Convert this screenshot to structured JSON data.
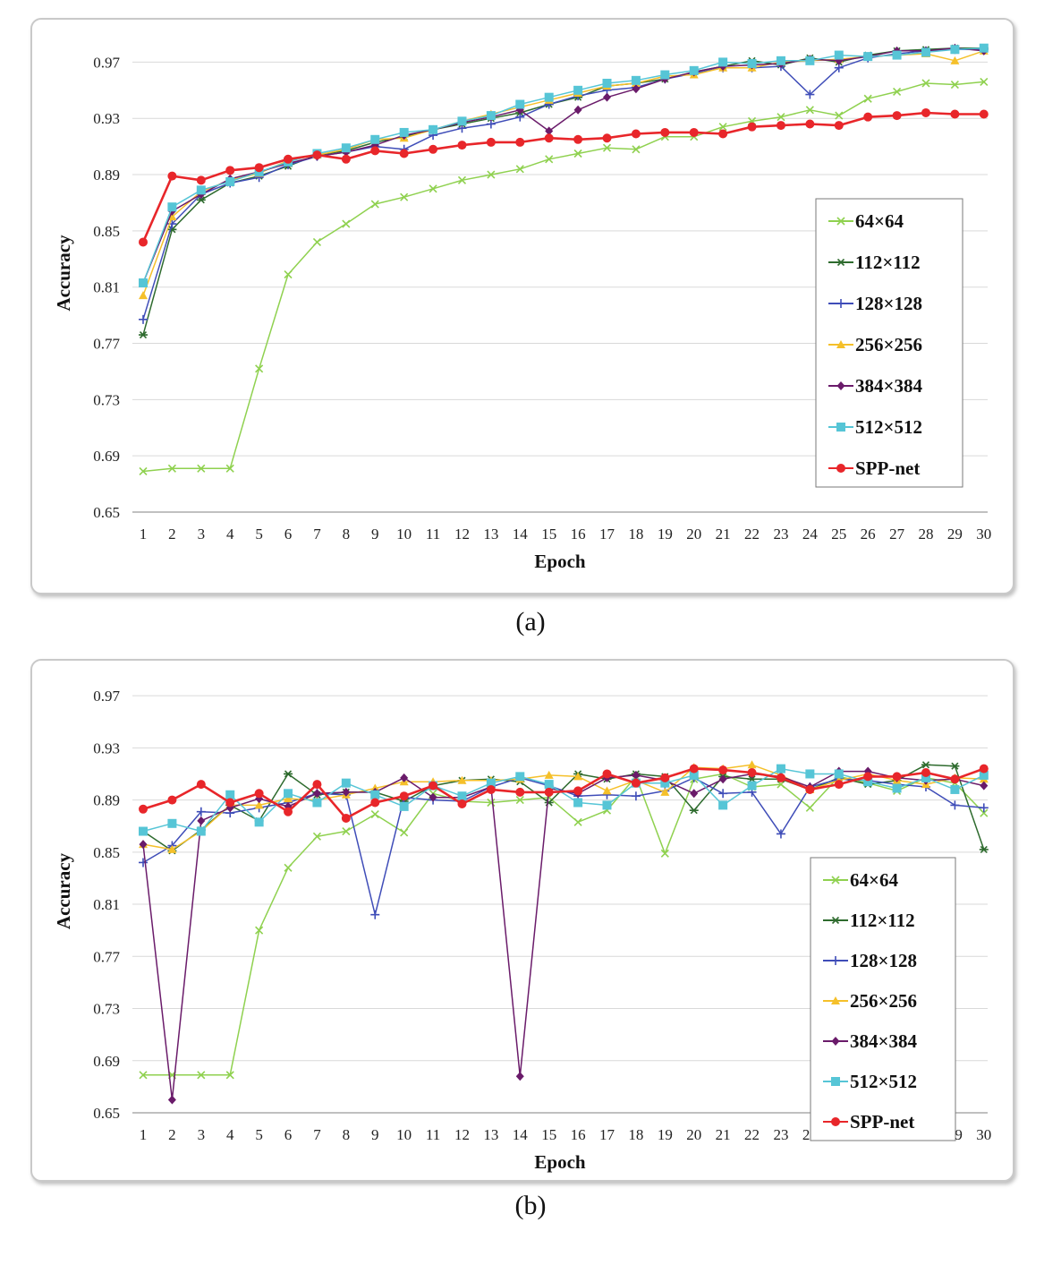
{
  "chart_data": [
    {
      "type": "line",
      "panel_label": "(a)",
      "xlabel": "Epoch",
      "ylabel": "Accuracy",
      "ylim": [
        0.65,
        0.99
      ],
      "yticks": [
        0.65,
        0.69,
        0.73,
        0.77,
        0.81,
        0.85,
        0.89,
        0.93,
        0.97
      ],
      "x": [
        1,
        2,
        3,
        4,
        5,
        6,
        7,
        8,
        9,
        10,
        11,
        12,
        13,
        14,
        15,
        16,
        17,
        18,
        19,
        20,
        21,
        22,
        23,
        24,
        25,
        26,
        27,
        28,
        29,
        30
      ],
      "grid": "horizontal",
      "legend": "right",
      "series": [
        {
          "name": "64×64",
          "color": "#8fd14f",
          "marker": "x",
          "values": [
            0.679,
            0.681,
            0.681,
            0.681,
            0.752,
            0.819,
            0.842,
            0.855,
            0.869,
            0.874,
            0.88,
            0.886,
            0.89,
            0.894,
            0.901,
            0.905,
            0.909,
            0.908,
            0.917,
            0.917,
            0.924,
            0.928,
            0.931,
            0.936,
            0.932,
            0.944,
            0.949,
            0.955,
            0.954,
            0.956
          ]
        },
        {
          "name": "112×112",
          "color": "#2e6b2e",
          "marker": "star",
          "values": [
            0.776,
            0.851,
            0.872,
            0.884,
            0.889,
            0.896,
            0.904,
            0.907,
            0.913,
            0.917,
            0.922,
            0.926,
            0.93,
            0.934,
            0.94,
            0.945,
            0.953,
            0.955,
            0.958,
            0.963,
            0.967,
            0.971,
            0.968,
            0.973,
            0.97,
            0.975,
            0.978,
            0.979,
            0.98,
            0.98
          ]
        },
        {
          "name": "128×128",
          "color": "#3f4db8",
          "marker": "plus",
          "values": [
            0.787,
            0.855,
            0.876,
            0.884,
            0.888,
            0.897,
            0.903,
            0.906,
            0.91,
            0.908,
            0.918,
            0.923,
            0.926,
            0.931,
            0.94,
            0.946,
            0.95,
            0.952,
            0.958,
            0.962,
            0.966,
            0.966,
            0.967,
            0.947,
            0.966,
            0.973,
            0.976,
            0.978,
            0.979,
            0.979
          ]
        },
        {
          "name": "256×256",
          "color": "#f5c02a",
          "marker": "triangle",
          "values": [
            0.804,
            0.86,
            0.878,
            0.886,
            0.891,
            0.9,
            0.904,
            0.908,
            0.915,
            0.916,
            0.922,
            0.928,
            0.933,
            0.938,
            0.943,
            0.948,
            0.953,
            0.955,
            0.96,
            0.961,
            0.966,
            0.966,
            0.97,
            0.971,
            0.972,
            0.974,
            0.975,
            0.976,
            0.971,
            0.978
          ]
        },
        {
          "name": "384×384",
          "color": "#6a1b6a",
          "marker": "diamond",
          "values": [
            0.813,
            0.864,
            0.876,
            0.887,
            0.892,
            0.898,
            0.903,
            0.906,
            0.911,
            0.918,
            0.922,
            0.927,
            0.931,
            0.936,
            0.921,
            0.936,
            0.945,
            0.951,
            0.958,
            0.963,
            0.967,
            0.968,
            0.969,
            0.972,
            0.971,
            0.974,
            0.978,
            0.978,
            0.98,
            0.978
          ]
        },
        {
          "name": "512×512",
          "color": "#56c5d6",
          "marker": "square",
          "values": [
            0.813,
            0.867,
            0.879,
            0.885,
            0.892,
            0.899,
            0.905,
            0.909,
            0.915,
            0.92,
            0.922,
            0.928,
            0.932,
            0.94,
            0.945,
            0.95,
            0.955,
            0.957,
            0.961,
            0.964,
            0.97,
            0.969,
            0.971,
            0.971,
            0.975,
            0.974,
            0.975,
            0.977,
            0.979,
            0.98
          ]
        },
        {
          "name": "SPP-net",
          "color": "#e8262a",
          "marker": "circle",
          "values": [
            0.842,
            0.889,
            0.886,
            0.893,
            0.895,
            0.901,
            0.904,
            0.901,
            0.907,
            0.905,
            0.908,
            0.911,
            0.913,
            0.913,
            0.916,
            0.915,
            0.916,
            0.919,
            0.92,
            0.92,
            0.919,
            0.924,
            0.925,
            0.926,
            0.925,
            0.931,
            0.932,
            0.934,
            0.933,
            0.933
          ]
        }
      ]
    },
    {
      "type": "line",
      "panel_label": "(b)",
      "xlabel": "Epoch",
      "ylabel": "Accuracy",
      "ylim": [
        0.65,
        0.99
      ],
      "yticks": [
        0.65,
        0.69,
        0.73,
        0.77,
        0.81,
        0.85,
        0.89,
        0.93,
        0.97
      ],
      "x": [
        1,
        2,
        3,
        4,
        5,
        6,
        7,
        8,
        9,
        10,
        11,
        12,
        13,
        14,
        15,
        16,
        17,
        18,
        19,
        20,
        21,
        22,
        23,
        24,
        25,
        26,
        27,
        28,
        29,
        30
      ],
      "grid": "horizontal",
      "legend": "right",
      "series": [
        {
          "name": "64×64",
          "color": "#8fd14f",
          "marker": "x",
          "values": [
            0.679,
            0.679,
            0.679,
            0.679,
            0.79,
            0.838,
            0.862,
            0.866,
            0.879,
            0.865,
            0.895,
            0.889,
            0.888,
            0.89,
            0.892,
            0.873,
            0.882,
            0.908,
            0.849,
            0.906,
            0.91,
            0.9,
            0.902,
            0.884,
            0.908,
            0.903,
            0.897,
            0.907,
            0.903,
            0.88
          ]
        },
        {
          "name": "112×112",
          "color": "#2e6b2e",
          "marker": "star",
          "values": [
            0.866,
            0.851,
            0.867,
            0.886,
            0.874,
            0.91,
            0.894,
            0.896,
            0.896,
            0.889,
            0.901,
            0.905,
            0.906,
            0.904,
            0.888,
            0.91,
            0.906,
            0.91,
            0.908,
            0.882,
            0.908,
            0.906,
            0.906,
            0.898,
            0.907,
            0.902,
            0.905,
            0.917,
            0.916,
            0.852
          ]
        },
        {
          "name": "128×128",
          "color": "#3f4db8",
          "marker": "plus",
          "values": [
            0.842,
            0.855,
            0.881,
            0.88,
            0.884,
            0.888,
            0.895,
            0.894,
            0.802,
            0.892,
            0.89,
            0.889,
            0.9,
            0.907,
            0.901,
            0.893,
            0.894,
            0.893,
            0.897,
            0.907,
            0.895,
            0.896,
            0.864,
            0.9,
            0.906,
            0.905,
            0.902,
            0.9,
            0.886,
            0.884
          ]
        },
        {
          "name": "256×256",
          "color": "#f5c02a",
          "marker": "triangle",
          "values": [
            0.856,
            0.852,
            0.866,
            0.886,
            0.886,
            0.891,
            0.89,
            0.894,
            0.899,
            0.904,
            0.904,
            0.905,
            0.905,
            0.906,
            0.909,
            0.908,
            0.897,
            0.905,
            0.896,
            0.915,
            0.914,
            0.917,
            0.909,
            0.898,
            0.905,
            0.91,
            0.905,
            0.902,
            0.907,
            0.906
          ]
        },
        {
          "name": "384×384",
          "color": "#6a1b6a",
          "marker": "diamond",
          "values": [
            0.856,
            0.66,
            0.874,
            0.884,
            0.891,
            0.885,
            0.895,
            0.896,
            0.896,
            0.907,
            0.892,
            0.892,
            0.9,
            0.678,
            0.899,
            0.895,
            0.907,
            0.909,
            0.905,
            0.895,
            0.906,
            0.91,
            0.908,
            0.9,
            0.912,
            0.912,
            0.907,
            0.905,
            0.906,
            0.901
          ]
        },
        {
          "name": "512×512",
          "color": "#56c5d6",
          "marker": "square",
          "values": [
            0.866,
            0.872,
            0.866,
            0.894,
            0.873,
            0.895,
            0.888,
            0.903,
            0.894,
            0.885,
            0.901,
            0.893,
            0.903,
            0.908,
            0.902,
            0.888,
            0.886,
            0.903,
            0.903,
            0.909,
            0.886,
            0.901,
            0.914,
            0.91,
            0.91,
            0.904,
            0.899,
            0.907,
            0.898,
            0.909
          ]
        },
        {
          "name": "SPP-net",
          "color": "#e8262a",
          "marker": "circle",
          "values": [
            0.883,
            0.89,
            0.902,
            0.888,
            0.895,
            0.881,
            0.902,
            0.876,
            0.888,
            0.893,
            0.901,
            0.887,
            0.898,
            0.896,
            0.896,
            0.897,
            0.91,
            0.903,
            0.907,
            0.914,
            0.913,
            0.911,
            0.907,
            0.898,
            0.902,
            0.908,
            0.908,
            0.911,
            0.906,
            0.914
          ]
        }
      ]
    }
  ]
}
